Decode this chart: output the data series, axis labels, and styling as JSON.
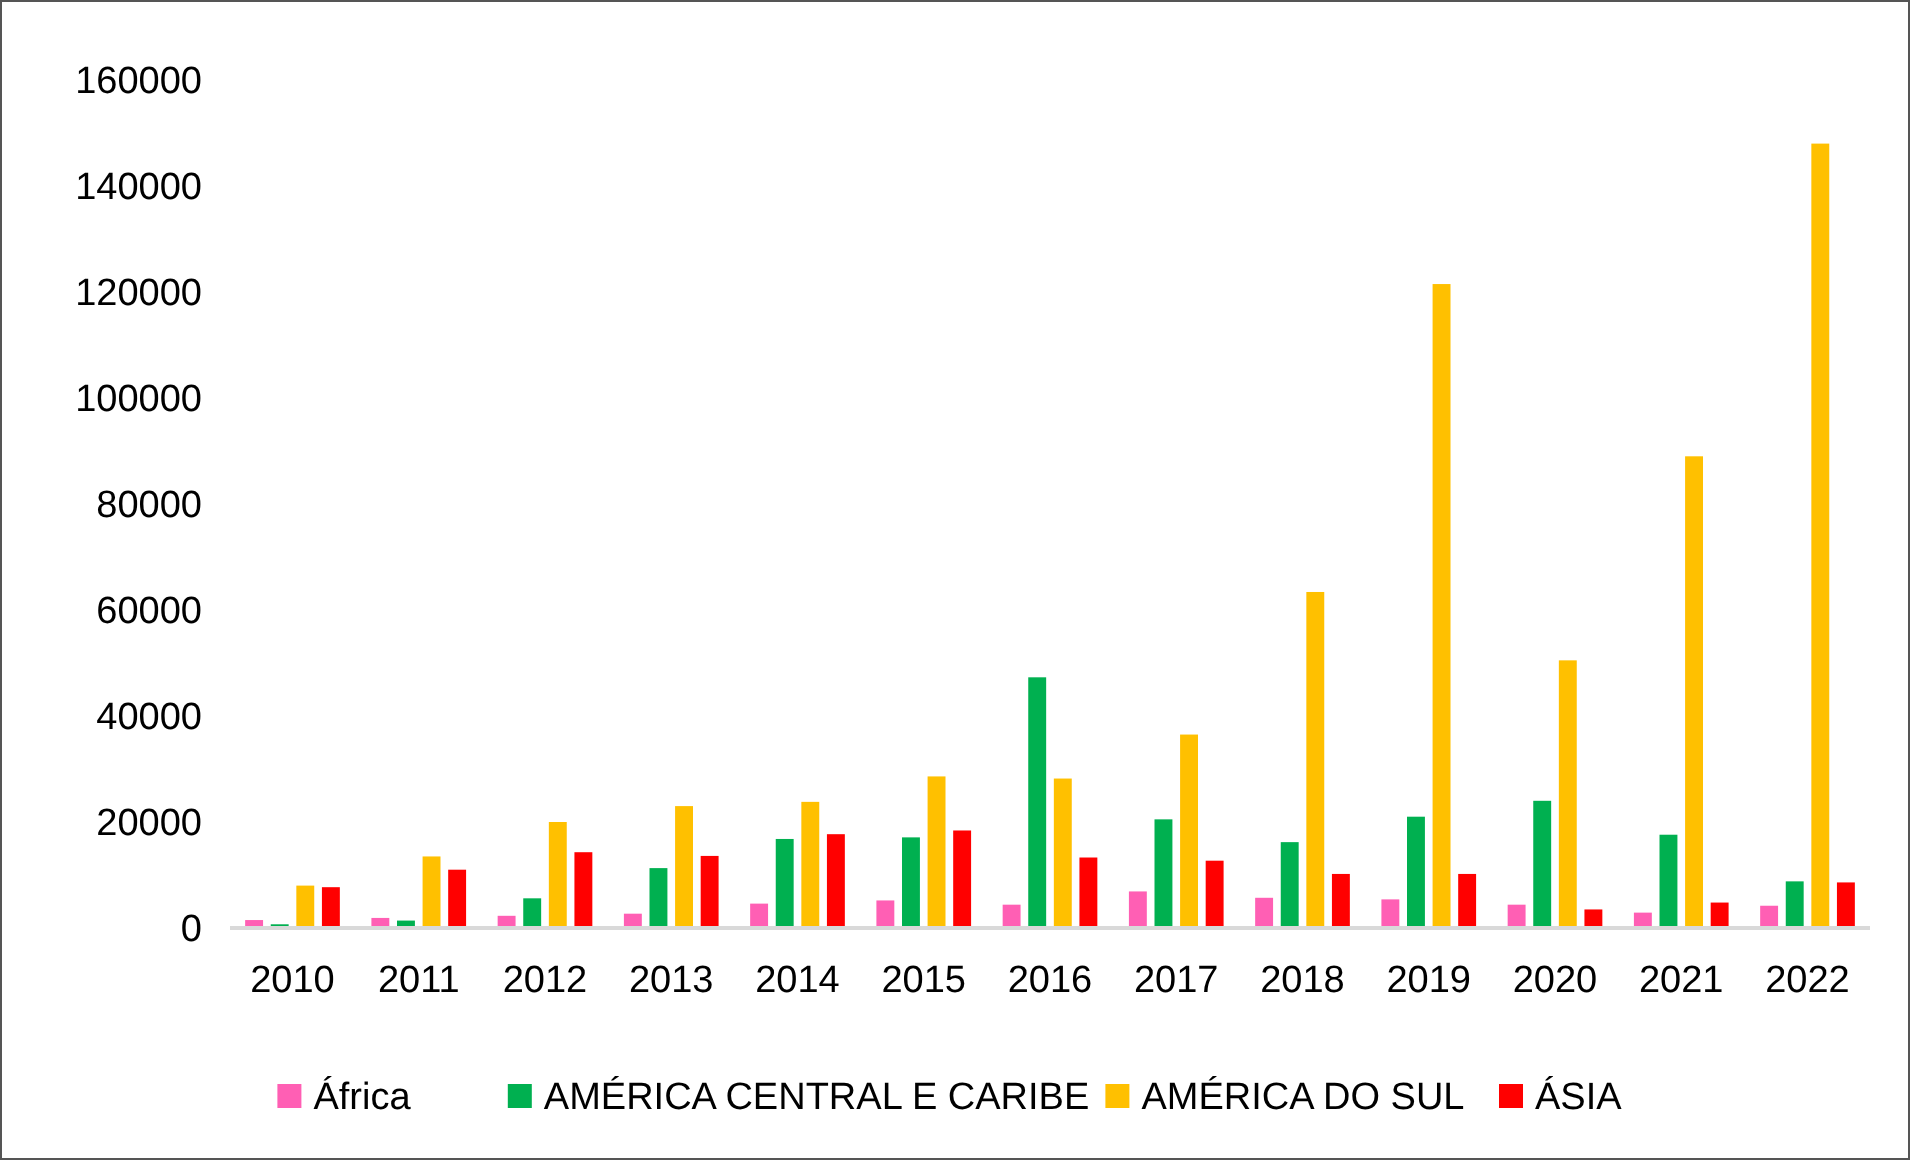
{
  "chart_data": {
    "type": "bar",
    "categories": [
      "2010",
      "2011",
      "2012",
      "2013",
      "2014",
      "2015",
      "2016",
      "2017",
      "2018",
      "2019",
      "2020",
      "2021",
      "2022"
    ],
    "series": [
      {
        "name": "África",
        "color": "#ff5fb4",
        "values": [
          1500,
          1900,
          2300,
          2700,
          4600,
          5200,
          4400,
          6900,
          5700,
          5400,
          4400,
          2900,
          4200
        ]
      },
      {
        "name": "AMÉRICA CENTRAL E CARIBE",
        "color": "#00b050",
        "values": [
          700,
          1400,
          5600,
          11300,
          16800,
          17100,
          47300,
          20500,
          16200,
          21000,
          24000,
          17600,
          8800
        ]
      },
      {
        "name": "AMÉRICA DO SUL",
        "color": "#ffc000",
        "values": [
          8000,
          13500,
          20000,
          23000,
          23800,
          28600,
          28200,
          36500,
          63400,
          121500,
          50500,
          89000,
          148000
        ]
      },
      {
        "name": "ÁSIA",
        "color": "#ff0000",
        "values": [
          7700,
          11000,
          14300,
          13600,
          17700,
          18400,
          13300,
          12700,
          10200,
          10200,
          3500,
          4800,
          8600
        ]
      }
    ],
    "ylim": [
      0,
      160000
    ],
    "yticks": [
      0,
      20000,
      40000,
      60000,
      80000,
      100000,
      120000,
      140000,
      160000
    ],
    "grid": false,
    "legend": "bottom"
  }
}
